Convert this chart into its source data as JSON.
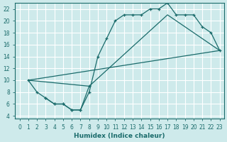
{
  "xlabel": "Humidex (Indice chaleur)",
  "bg_color": "#ceeaeb",
  "grid_color": "#ffffff",
  "line_color": "#1a6b6b",
  "xlim": [
    -0.5,
    23.5
  ],
  "ylim": [
    3.5,
    23.0
  ],
  "xticks": [
    0,
    1,
    2,
    3,
    4,
    5,
    6,
    7,
    8,
    9,
    10,
    11,
    12,
    13,
    14,
    15,
    16,
    17,
    18,
    19,
    20,
    21,
    22,
    23
  ],
  "yticks": [
    4,
    6,
    8,
    10,
    12,
    14,
    16,
    18,
    20,
    22
  ],
  "curve1_x": [
    1,
    2,
    3,
    4,
    5,
    6,
    7,
    8,
    9,
    10,
    11,
    12,
    13,
    14,
    15,
    16,
    17,
    18,
    19,
    20,
    21,
    22,
    23
  ],
  "curve1_y": [
    10,
    8,
    7,
    6,
    6,
    5,
    5,
    8,
    14,
    17,
    20,
    21,
    21,
    21,
    22,
    22,
    23,
    21,
    21,
    21,
    19,
    18,
    15
  ],
  "curve2_x": [
    3,
    4,
    5,
    6,
    7,
    8
  ],
  "curve2_y": [
    7,
    6,
    6,
    5,
    5,
    9
  ],
  "line_x": [
    1,
    23
  ],
  "line_y": [
    10,
    15
  ],
  "line2_x": [
    1,
    8,
    17,
    23
  ],
  "line2_y": [
    10,
    9,
    21,
    15
  ]
}
